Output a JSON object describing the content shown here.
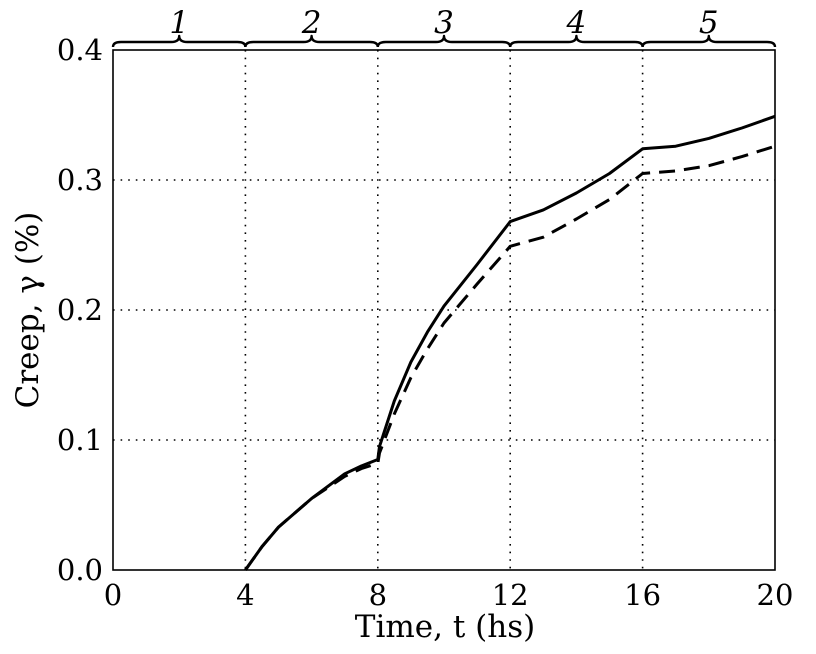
{
  "chart_data": {
    "type": "line",
    "xlabel": "Time, t (hs)",
    "ylabel": "Creep, γ (%)",
    "xlim": [
      0,
      20
    ],
    "ylim": [
      0,
      0.4
    ],
    "xticks": [
      "0",
      "4",
      "8",
      "12",
      "16",
      "20"
    ],
    "yticks": [
      "0.0",
      "0.1",
      "0.2",
      "0.3",
      "0.4"
    ],
    "grid": true,
    "stages": [
      "1",
      "2",
      "3",
      "4",
      "5"
    ],
    "series": [
      {
        "style": "solid",
        "points": [
          [
            4,
            0.0
          ],
          [
            4.5,
            0.018
          ],
          [
            5,
            0.033
          ],
          [
            6,
            0.055
          ],
          [
            7,
            0.074
          ],
          [
            7.5,
            0.08
          ],
          [
            8,
            0.085
          ],
          [
            8.05,
            0.095
          ],
          [
            8.5,
            0.13
          ],
          [
            9,
            0.16
          ],
          [
            9.5,
            0.183
          ],
          [
            10,
            0.203
          ],
          [
            11,
            0.235
          ],
          [
            12,
            0.268
          ],
          [
            13,
            0.277
          ],
          [
            14,
            0.29
          ],
          [
            15,
            0.305
          ],
          [
            16,
            0.324
          ],
          [
            17,
            0.326
          ],
          [
            18,
            0.332
          ],
          [
            19,
            0.34
          ],
          [
            20,
            0.349
          ]
        ]
      },
      {
        "style": "dashed",
        "points": [
          [
            4,
            0.0
          ],
          [
            4.5,
            0.018
          ],
          [
            5,
            0.033
          ],
          [
            6,
            0.055
          ],
          [
            7,
            0.072
          ],
          [
            7.5,
            0.078
          ],
          [
            8,
            0.082
          ],
          [
            8.05,
            0.09
          ],
          [
            8.5,
            0.12
          ],
          [
            9,
            0.148
          ],
          [
            9.5,
            0.17
          ],
          [
            10,
            0.19
          ],
          [
            11,
            0.22
          ],
          [
            12,
            0.249
          ],
          [
            13,
            0.256
          ],
          [
            14,
            0.27
          ],
          [
            15,
            0.285
          ],
          [
            16,
            0.305
          ],
          [
            17,
            0.307
          ],
          [
            18,
            0.311
          ],
          [
            19,
            0.318
          ],
          [
            20,
            0.326
          ]
        ]
      }
    ]
  }
}
